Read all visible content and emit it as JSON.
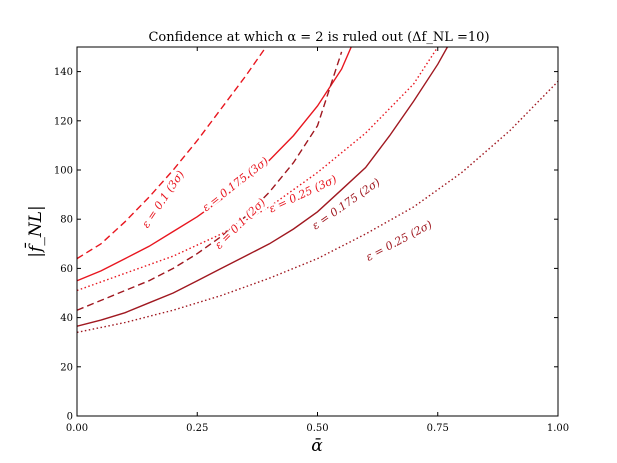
{
  "chart_data": {
    "type": "line",
    "title": "Confidence at which α = 2 is ruled out (Δf_NL =10)",
    "xlabel": "ᾱ",
    "ylabel": "|f̄_NL|",
    "xlim": [
      0,
      1
    ],
    "ylim": [
      0,
      150
    ],
    "xticks": [
      "0.00",
      "0.25",
      "0.50",
      "0.75",
      "1.00"
    ],
    "yticks": [
      "0",
      "20",
      "40",
      "60",
      "80",
      "100",
      "120",
      "140"
    ],
    "grid": false,
    "legend": "none",
    "series": [
      {
        "name": "ε = 0.1 (3σ)",
        "color": "#e8161f",
        "style": "dashed",
        "x": [
          0,
          0.05,
          0.1,
          0.15,
          0.2,
          0.25,
          0.3,
          0.35,
          0.4
        ],
        "y": [
          64,
          70,
          79,
          89,
          100,
          112,
          125,
          138,
          152
        ]
      },
      {
        "name": "ε = 0.175 (3σ)",
        "color": "#e8161f",
        "style": "solid",
        "x": [
          0,
          0.05,
          0.1,
          0.15,
          0.2,
          0.25,
          0.3,
          0.35,
          0.4,
          0.45,
          0.5,
          0.55,
          0.57
        ],
        "y": [
          55,
          59,
          64,
          69,
          75,
          81,
          88,
          96,
          104,
          114,
          126,
          141,
          150
        ]
      },
      {
        "name": "ε = 0.25 (3σ)",
        "color": "#e8161f",
        "style": "dotted",
        "x": [
          0,
          0.1,
          0.2,
          0.3,
          0.4,
          0.5,
          0.6,
          0.7,
          0.75
        ],
        "y": [
          51,
          58,
          65,
          74,
          85,
          99,
          115,
          135,
          150
        ]
      },
      {
        "name": "ε = 0.1 (2σ)",
        "color": "#a01820",
        "style": "dashed",
        "x": [
          0,
          0.05,
          0.1,
          0.15,
          0.2,
          0.25,
          0.3,
          0.35,
          0.4,
          0.45,
          0.5,
          0.55
        ],
        "y": [
          43,
          47,
          51,
          55,
          60,
          66,
          73,
          81,
          91,
          103,
          118,
          148
        ]
      },
      {
        "name": "ε = 0.175 (2σ)",
        "color": "#a01820",
        "style": "solid",
        "x": [
          0,
          0.05,
          0.1,
          0.15,
          0.2,
          0.25,
          0.3,
          0.35,
          0.4,
          0.45,
          0.5,
          0.55,
          0.6,
          0.65,
          0.7,
          0.75,
          0.77
        ],
        "y": [
          36.5,
          39,
          42,
          46,
          50,
          55,
          60,
          65,
          70,
          76,
          83,
          92,
          101,
          114,
          128,
          143,
          150
        ]
      },
      {
        "name": "ε = 0.25 (2σ)",
        "color": "#a01820",
        "style": "dotted",
        "x": [
          0,
          0.1,
          0.2,
          0.3,
          0.4,
          0.5,
          0.6,
          0.7,
          0.8,
          0.9,
          1.0
        ],
        "y": [
          34,
          38,
          43,
          49,
          56,
          64,
          74,
          85,
          99,
          116,
          136
        ]
      }
    ],
    "annotations": [
      {
        "text": "ε = 0.1 (3σ)",
        "x": 0.18,
        "y": 88,
        "rotate": -56,
        "color": "#e8161f"
      },
      {
        "text": "ε = 0.175 (3σ)",
        "x": 0.33,
        "y": 94,
        "rotate": -38,
        "color": "#e8161f"
      },
      {
        "text": "ε = 0.1 (2σ)",
        "x": 0.34,
        "y": 78,
        "rotate": -45,
        "color": "#e8161f"
      },
      {
        "text": "ε = 0.25 (3σ)",
        "x": 0.47,
        "y": 90,
        "rotate": -25,
        "color": "#e8161f"
      },
      {
        "text": "ε = 0.175 (2σ)",
        "x": 0.56,
        "y": 86,
        "rotate": -35,
        "color": "#a01820"
      },
      {
        "text": "ε = 0.25 (2σ)",
        "x": 0.67,
        "y": 71,
        "rotate": -28,
        "color": "#a01820"
      }
    ]
  }
}
